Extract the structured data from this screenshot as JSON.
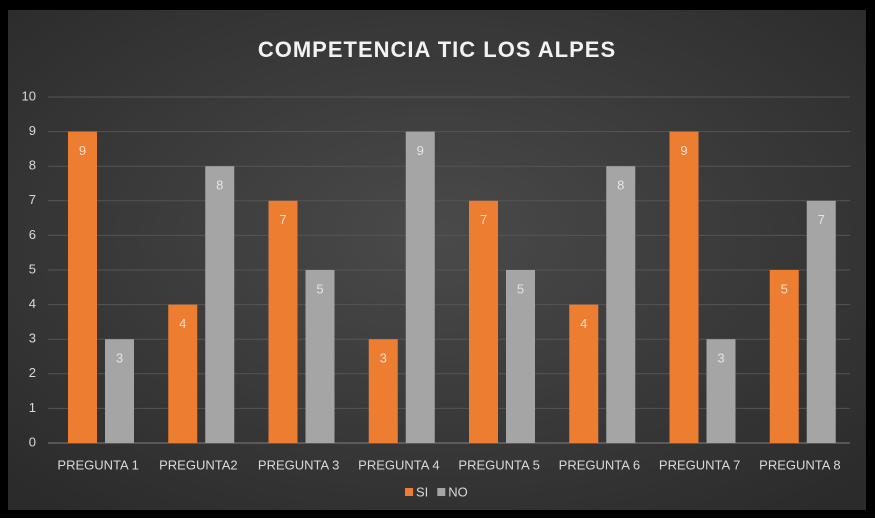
{
  "chart_data": {
    "type": "bar",
    "title": "COMPETENCIA TIC LOS ALPES",
    "categories": [
      "PREGUNTA 1",
      "PREGUNTA2",
      "PREGUNTA 3",
      "PREGUNTA 4",
      "PREGUNTA 5",
      "PREGUNTA 6",
      "PREGUNTA 7",
      "PREGUNTA 8"
    ],
    "series": [
      {
        "name": "SI",
        "color": "#ed7d31",
        "values": [
          9,
          4,
          7,
          3,
          7,
          4,
          9,
          5
        ]
      },
      {
        "name": "NO",
        "color": "#a5a5a5",
        "values": [
          3,
          8,
          5,
          9,
          5,
          8,
          3,
          7
        ]
      }
    ],
    "ylim": [
      0,
      10
    ],
    "yticks": [
      0,
      1,
      2,
      3,
      4,
      5,
      6,
      7,
      8,
      9,
      10
    ],
    "grid": true,
    "legend": "bottom"
  }
}
